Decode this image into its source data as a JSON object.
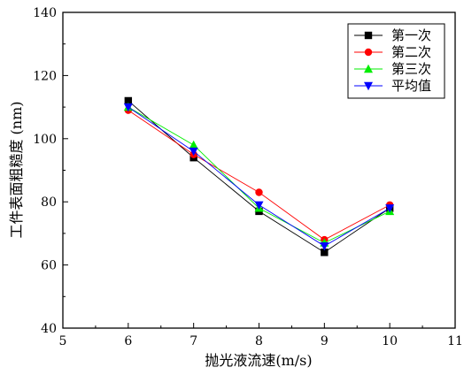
{
  "chart_data": {
    "type": "line",
    "title": "",
    "xlabel": "抛光液流速(m/s)",
    "ylabel": "工件表面粗糙度 (nm)",
    "xlim": [
      5,
      11
    ],
    "ylim": [
      40,
      140
    ],
    "xticks": [
      5,
      6,
      7,
      8,
      9,
      10,
      11
    ],
    "yticks": [
      40,
      60,
      80,
      100,
      120,
      140
    ],
    "grid": false,
    "legend_position": "top-right",
    "x": [
      6,
      7,
      8,
      9,
      10
    ],
    "series": [
      {
        "name": "第一次",
        "values": [
          112,
          94,
          77,
          64,
          78
        ],
        "color": "#000000",
        "marker": "square"
      },
      {
        "name": "第二次",
        "values": [
          109,
          95,
          83,
          68,
          79
        ],
        "color": "#ff0000",
        "marker": "circle"
      },
      {
        "name": "第三次",
        "values": [
          110,
          98,
          78,
          67,
          77
        ],
        "color": "#00ee00",
        "marker": "triangle-up"
      },
      {
        "name": "平均值",
        "values": [
          110,
          96,
          79,
          66,
          78
        ],
        "color": "#0000ff",
        "marker": "triangle-down"
      }
    ]
  }
}
